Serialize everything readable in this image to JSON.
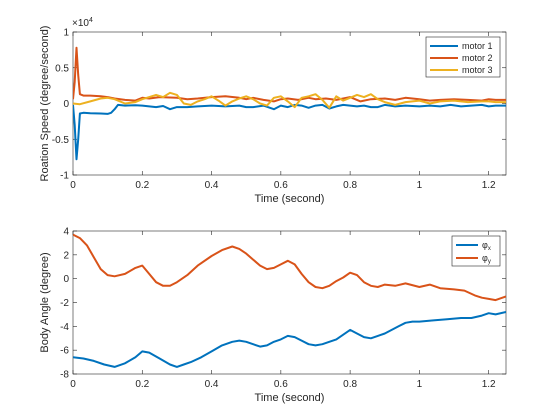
{
  "chart_data": [
    {
      "type": "line",
      "xlabel": "Time (second)",
      "ylabel": "Roation Speed (degree/second)",
      "exponent": "×10",
      "exponent_power": "4",
      "xlim": [
        0,
        1.25
      ],
      "ylim": [
        -10000,
        10000
      ],
      "x_ticks": [
        0,
        0.2,
        0.4,
        0.6,
        0.8,
        1,
        1.2
      ],
      "x_tick_labels": [
        "0",
        "0.2",
        "0.4",
        "0.6",
        "0.8",
        "1",
        "1.2"
      ],
      "y_ticks": [
        -10000,
        -5000,
        0,
        5000,
        10000
      ],
      "y_tick_labels": [
        "-1",
        "-0.5",
        "0",
        "0.5",
        "1"
      ],
      "grid": false,
      "legend_position": "top-right",
      "series": [
        {
          "name": "motor 1",
          "color": "#0072BD",
          "x": [
            0,
            0.005,
            0.01,
            0.015,
            0.02,
            0.03,
            0.05,
            0.08,
            0.1,
            0.11,
            0.12,
            0.13,
            0.15,
            0.18,
            0.2,
            0.22,
            0.24,
            0.26,
            0.28,
            0.3,
            0.33,
            0.36,
            0.4,
            0.44,
            0.48,
            0.5,
            0.52,
            0.55,
            0.58,
            0.6,
            0.62,
            0.64,
            0.66,
            0.68,
            0.7,
            0.72,
            0.74,
            0.76,
            0.78,
            0.8,
            0.82,
            0.84,
            0.86,
            0.88,
            0.9,
            0.93,
            0.96,
            1.0,
            1.03,
            1.06,
            1.09,
            1.12,
            1.15,
            1.18,
            1.2,
            1.22,
            1.25
          ],
          "y": [
            -200,
            -3000,
            -7800,
            -5000,
            -1400,
            -1300,
            -1350,
            -1400,
            -1450,
            -1300,
            -800,
            -200,
            -300,
            -250,
            -300,
            -400,
            -500,
            -350,
            -800,
            -500,
            -500,
            -400,
            -300,
            -400,
            -300,
            -500,
            -500,
            -300,
            -800,
            -300,
            -500,
            -200,
            -300,
            -600,
            -300,
            -200,
            -700,
            -400,
            -200,
            -300,
            -400,
            -300,
            -500,
            -500,
            -200,
            -400,
            -300,
            -400,
            -300,
            -400,
            -200,
            -400,
            -300,
            -200,
            -400,
            -300,
            -300
          ]
        },
        {
          "name": "motor 2",
          "color": "#D95319",
          "x": [
            0,
            0.005,
            0.01,
            0.015,
            0.02,
            0.03,
            0.05,
            0.08,
            0.1,
            0.12,
            0.15,
            0.18,
            0.2,
            0.22,
            0.25,
            0.3,
            0.33,
            0.36,
            0.4,
            0.44,
            0.48,
            0.5,
            0.52,
            0.55,
            0.58,
            0.6,
            0.62,
            0.65,
            0.68,
            0.7,
            0.73,
            0.76,
            0.8,
            0.83,
            0.86,
            0.9,
            0.93,
            0.96,
            1.0,
            1.03,
            1.06,
            1.1,
            1.14,
            1.18,
            1.2,
            1.22,
            1.25
          ],
          "y": [
            600,
            3000,
            7800,
            4000,
            1300,
            1100,
            1100,
            1000,
            900,
            700,
            500,
            400,
            800,
            700,
            900,
            800,
            600,
            700,
            900,
            1000,
            800,
            600,
            800,
            500,
            300,
            600,
            700,
            500,
            800,
            600,
            700,
            500,
            900,
            300,
            600,
            700,
            500,
            800,
            600,
            400,
            500,
            600,
            500,
            400,
            600,
            500,
            500
          ]
        },
        {
          "name": "motor 3",
          "color": "#EDB120",
          "x": [
            0,
            0.02,
            0.05,
            0.08,
            0.1,
            0.12,
            0.15,
            0.18,
            0.2,
            0.22,
            0.24,
            0.26,
            0.28,
            0.3,
            0.32,
            0.34,
            0.36,
            0.38,
            0.4,
            0.42,
            0.44,
            0.46,
            0.48,
            0.5,
            0.52,
            0.54,
            0.56,
            0.58,
            0.6,
            0.62,
            0.64,
            0.66,
            0.68,
            0.7,
            0.72,
            0.74,
            0.76,
            0.78,
            0.8,
            0.82,
            0.84,
            0.86,
            0.88,
            0.9,
            0.93,
            0.96,
            1.0,
            1.03,
            1.06,
            1.1,
            1.14,
            1.18,
            1.2,
            1.22,
            1.25
          ],
          "y": [
            0,
            -100,
            300,
            700,
            800,
            600,
            0,
            200,
            600,
            900,
            1200,
            900,
            1500,
            1200,
            0,
            -200,
            300,
            600,
            1000,
            400,
            -300,
            300,
            700,
            1000,
            600,
            0,
            -300,
            800,
            1000,
            300,
            -500,
            800,
            1000,
            1300,
            500,
            -600,
            1000,
            400,
            800,
            1200,
            900,
            1300,
            600,
            200,
            -200,
            200,
            400,
            0,
            300,
            400,
            200,
            300,
            300,
            200,
            200
          ]
        }
      ]
    },
    {
      "type": "line",
      "xlabel": "Time (second)",
      "ylabel": "Body Angle (degree)",
      "xlim": [
        0,
        1.25
      ],
      "ylim": [
        -8,
        4
      ],
      "x_ticks": [
        0,
        0.2,
        0.4,
        0.6,
        0.8,
        1,
        1.2
      ],
      "x_tick_labels": [
        "0",
        "0.2",
        "0.4",
        "0.6",
        "0.8",
        "1",
        "1.2"
      ],
      "y_ticks": [
        -8,
        -6,
        -4,
        -2,
        0,
        2,
        4
      ],
      "y_tick_labels": [
        "-8",
        "-6",
        "-4",
        "-2",
        "0",
        "2",
        "4"
      ],
      "grid": false,
      "legend_position": "top-right",
      "series": [
        {
          "name": "φ",
          "subscript": "x",
          "color": "#0072BD",
          "x": [
            0,
            0.03,
            0.06,
            0.09,
            0.12,
            0.15,
            0.18,
            0.2,
            0.22,
            0.25,
            0.28,
            0.3,
            0.32,
            0.34,
            0.37,
            0.4,
            0.43,
            0.46,
            0.48,
            0.5,
            0.52,
            0.54,
            0.56,
            0.58,
            0.6,
            0.62,
            0.64,
            0.66,
            0.68,
            0.7,
            0.72,
            0.74,
            0.76,
            0.78,
            0.8,
            0.82,
            0.84,
            0.86,
            0.88,
            0.9,
            0.92,
            0.94,
            0.96,
            0.98,
            1.0,
            1.04,
            1.08,
            1.12,
            1.15,
            1.18,
            1.2,
            1.22,
            1.25
          ],
          "y": [
            -6.6,
            -6.7,
            -6.9,
            -7.2,
            -7.4,
            -7.1,
            -6.6,
            -6.1,
            -6.2,
            -6.7,
            -7.2,
            -7.4,
            -7.2,
            -7.0,
            -6.6,
            -6.1,
            -5.6,
            -5.3,
            -5.2,
            -5.3,
            -5.5,
            -5.7,
            -5.6,
            -5.3,
            -5.1,
            -4.8,
            -4.9,
            -5.2,
            -5.5,
            -5.6,
            -5.5,
            -5.3,
            -5.1,
            -4.7,
            -4.3,
            -4.6,
            -4.9,
            -5.0,
            -4.8,
            -4.6,
            -4.3,
            -4.0,
            -3.7,
            -3.6,
            -3.6,
            -3.5,
            -3.4,
            -3.3,
            -3.3,
            -3.1,
            -2.9,
            -3.0,
            -2.8
          ]
        },
        {
          "name": "φ",
          "subscript": "y",
          "color": "#D95319",
          "x": [
            0,
            0.02,
            0.04,
            0.06,
            0.08,
            0.1,
            0.12,
            0.15,
            0.18,
            0.2,
            0.22,
            0.24,
            0.26,
            0.28,
            0.3,
            0.33,
            0.36,
            0.4,
            0.43,
            0.46,
            0.48,
            0.5,
            0.52,
            0.54,
            0.56,
            0.58,
            0.6,
            0.62,
            0.64,
            0.66,
            0.68,
            0.7,
            0.72,
            0.74,
            0.76,
            0.78,
            0.8,
            0.82,
            0.84,
            0.86,
            0.88,
            0.9,
            0.93,
            0.96,
            1.0,
            1.03,
            1.06,
            1.1,
            1.13,
            1.16,
            1.18,
            1.2,
            1.22,
            1.25
          ],
          "y": [
            3.7,
            3.4,
            2.8,
            1.8,
            0.8,
            0.3,
            0.2,
            0.4,
            0.9,
            1.1,
            0.4,
            -0.3,
            -0.6,
            -0.6,
            -0.3,
            0.3,
            1.1,
            1.9,
            2.4,
            2.7,
            2.5,
            2.1,
            1.6,
            1.1,
            0.8,
            0.9,
            1.2,
            1.5,
            1.2,
            0.4,
            -0.3,
            -0.7,
            -0.8,
            -0.6,
            -0.2,
            0.1,
            0.5,
            0.3,
            -0.3,
            -0.6,
            -0.7,
            -0.5,
            -0.6,
            -0.4,
            -0.7,
            -0.5,
            -0.8,
            -0.9,
            -1.0,
            -1.4,
            -1.6,
            -1.7,
            -1.8,
            -1.5
          ]
        }
      ]
    }
  ]
}
